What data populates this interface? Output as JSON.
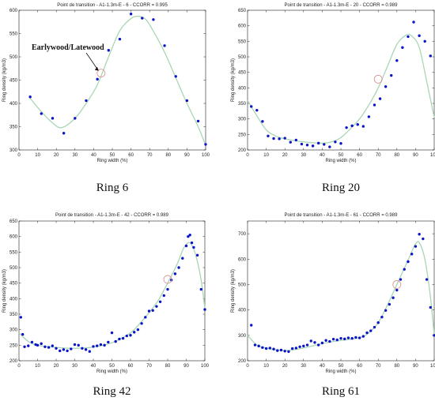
{
  "colors": {
    "points": "#0b15c8",
    "fit": "#a9d6b4",
    "marker": "#d98f8f",
    "axis": "#222222"
  },
  "chart_data": [
    {
      "type": "scatter",
      "title": "Point de transition - A1-1.3m-E - 6 - CCORR = 0.995",
      "caption": "Ring 6",
      "xlabel": "Ring width (%)",
      "ylabel": "Ring density (kg/m3)",
      "xlim": [
        0,
        100
      ],
      "ylim": [
        300,
        600
      ],
      "xticks": [
        0,
        10,
        20,
        30,
        40,
        50,
        60,
        70,
        80,
        90,
        100
      ],
      "yticks": [
        300,
        350,
        400,
        450,
        500,
        550,
        600
      ],
      "annotation": "Earlywood/Latewood",
      "transition": {
        "x": 44,
        "y": 465
      },
      "series": [
        {
          "kind": "points",
          "x": [
            6,
            12,
            18,
            24,
            30,
            36,
            42,
            48,
            54,
            60,
            66,
            72,
            78,
            84,
            90,
            96,
            100
          ],
          "y": [
            414,
            378,
            368,
            336,
            368,
            406,
            452,
            514,
            538,
            592,
            583,
            580,
            524,
            458,
            406,
            362,
            312
          ]
        },
        {
          "kind": "fit",
          "x": [
            6,
            12,
            18,
            23,
            30,
            36,
            42,
            48,
            54,
            60,
            64,
            68,
            72,
            78,
            84,
            90,
            96,
            100
          ],
          "y": [
            411,
            382,
            358,
            348,
            368,
            400,
            440,
            500,
            556,
            582,
            587,
            580,
            555,
            510,
            455,
            400,
            350,
            310
          ]
        }
      ]
    },
    {
      "type": "scatter",
      "title": "Point de transition - A1-1.3m-E - 20 - CCORR = 0.989",
      "caption": "Ring 20",
      "xlabel": "Ring width (%)",
      "ylabel": "Ring density (kg/m3)",
      "xlim": [
        0,
        100
      ],
      "ylim": [
        200,
        650
      ],
      "xticks": [
        0,
        10,
        20,
        30,
        40,
        50,
        60,
        70,
        80,
        90,
        100
      ],
      "yticks": [
        200,
        250,
        300,
        350,
        400,
        450,
        500,
        550,
        600,
        650
      ],
      "transition": {
        "x": 70,
        "y": 428
      },
      "series": [
        {
          "kind": "points",
          "x": [
            2,
            5,
            8,
            11,
            14,
            17,
            20,
            23,
            26,
            29,
            32,
            35,
            38,
            41,
            44,
            47,
            50,
            53,
            56,
            59,
            62,
            65,
            68,
            71,
            74,
            77,
            80,
            83,
            86,
            89,
            92,
            95,
            98
          ],
          "y": [
            340,
            328,
            292,
            245,
            237,
            236,
            238,
            225,
            232,
            219,
            216,
            213,
            222,
            218,
            210,
            226,
            221,
            272,
            278,
            282,
            276,
            307,
            345,
            365,
            404,
            440,
            488,
            530,
            565,
            612,
            568,
            550,
            503
          ]
        },
        {
          "kind": "fit",
          "x": [
            0,
            5,
            10,
            15,
            20,
            30,
            40,
            45,
            50,
            55,
            60,
            65,
            70,
            75,
            80,
            85,
            88,
            92,
            96,
            100
          ],
          "y": [
            360,
            310,
            265,
            245,
            236,
            226,
            222,
            226,
            240,
            268,
            300,
            345,
            400,
            470,
            540,
            570,
            567,
            530,
            420,
            305
          ]
        }
      ]
    },
    {
      "type": "scatter",
      "title": "Point de transition - A1-1.3m-E - 42 - CCORR = 0.989",
      "caption": "Ring 42",
      "xlabel": "Ring width (%)",
      "ylabel": "Ring density (kg/m3)",
      "xlim": [
        0,
        100
      ],
      "ylim": [
        200,
        650
      ],
      "xticks": [
        0,
        10,
        20,
        30,
        40,
        50,
        60,
        70,
        80,
        90,
        100
      ],
      "yticks": [
        200,
        250,
        300,
        350,
        400,
        450,
        500,
        550,
        600,
        650
      ],
      "transition": {
        "x": 80,
        "y": 462
      },
      "series": [
        {
          "kind": "points",
          "x": [
            1,
            2,
            3,
            5,
            7,
            9,
            10,
            12,
            14,
            16,
            18,
            20,
            22,
            24,
            26,
            28,
            30,
            32,
            34,
            36,
            38,
            40,
            42,
            44,
            46,
            48,
            50,
            52,
            54,
            56,
            58,
            60,
            62,
            64,
            66,
            68,
            70,
            72,
            74,
            76,
            78,
            80,
            82,
            84,
            86,
            88,
            90,
            91,
            92,
            93,
            94,
            96,
            98,
            100
          ],
          "y": [
            340,
            285,
            245,
            248,
            260,
            252,
            250,
            255,
            245,
            243,
            248,
            240,
            232,
            236,
            232,
            238,
            252,
            250,
            240,
            236,
            230,
            246,
            248,
            252,
            250,
            260,
            290,
            262,
            270,
            272,
            280,
            282,
            292,
            300,
            320,
            340,
            360,
            362,
            375,
            390,
            410,
            430,
            460,
            480,
            500,
            530,
            570,
            600,
            605,
            580,
            565,
            540,
            430,
            365
          ]
        },
        {
          "kind": "fit",
          "x": [
            0,
            5,
            10,
            20,
            30,
            40,
            50,
            60,
            65,
            70,
            75,
            80,
            85,
            88,
            90,
            92,
            94,
            96,
            98,
            100
          ],
          "y": [
            290,
            262,
            250,
            243,
            240,
            244,
            258,
            290,
            320,
            355,
            395,
            450,
            510,
            555,
            575,
            580,
            560,
            520,
            460,
            370
          ]
        }
      ]
    },
    {
      "type": "scatter",
      "title": "Point de transition - A1-1.3m-E - 61 - CCORR = 0.989",
      "caption": "Ring 61",
      "xlabel": "Ring width (%)",
      "ylabel": "Ring density (kg/m3)",
      "xlim": [
        0,
        100
      ],
      "ylim": [
        200,
        750
      ],
      "xticks": [
        0,
        10,
        20,
        30,
        40,
        50,
        60,
        70,
        80,
        90,
        100
      ],
      "yticks": [
        200,
        300,
        400,
        500,
        600,
        700
      ],
      "transition": {
        "x": 80,
        "y": 500
      },
      "series": [
        {
          "kind": "points",
          "x": [
            2,
            4,
            6,
            8,
            10,
            12,
            14,
            16,
            18,
            20,
            22,
            24,
            26,
            28,
            30,
            32,
            34,
            36,
            38,
            40,
            42,
            44,
            46,
            48,
            50,
            52,
            54,
            56,
            58,
            60,
            62,
            64,
            66,
            68,
            70,
            72,
            74,
            76,
            78,
            80,
            82,
            84,
            86,
            88,
            90,
            92,
            94,
            96,
            98,
            100
          ],
          "y": [
            340,
            262,
            258,
            252,
            248,
            250,
            246,
            240,
            242,
            238,
            236,
            248,
            250,
            255,
            258,
            262,
            278,
            272,
            262,
            270,
            280,
            276,
            285,
            282,
            288,
            286,
            290,
            288,
            292,
            290,
            296,
            310,
            318,
            332,
            350,
            372,
            398,
            422,
            448,
            478,
            520,
            560,
            590,
            620,
            650,
            698,
            680,
            520,
            410,
            300
          ]
        },
        {
          "kind": "fit",
          "x": [
            0,
            5,
            10,
            20,
            30,
            40,
            50,
            60,
            65,
            70,
            75,
            80,
            85,
            88,
            90,
            92,
            95,
            98,
            100
          ],
          "y": [
            300,
            262,
            250,
            240,
            250,
            268,
            280,
            290,
            310,
            350,
            420,
            500,
            580,
            630,
            660,
            665,
            600,
            450,
            300
          ]
        }
      ]
    }
  ]
}
